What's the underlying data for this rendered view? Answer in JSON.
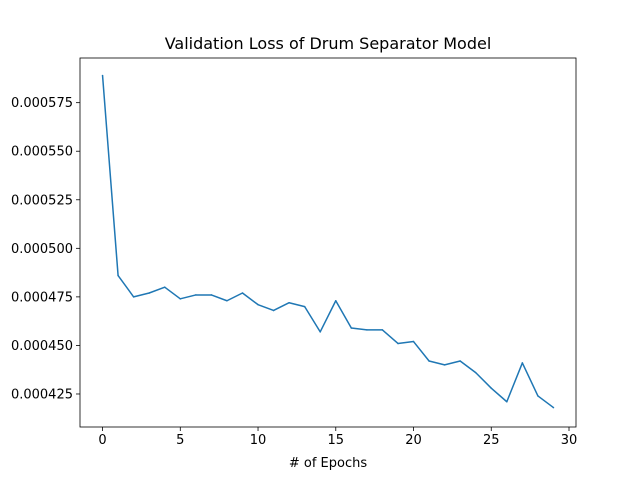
{
  "chart_data": {
    "type": "line",
    "title": "Validation Loss of Drum Separator Model",
    "xlabel": "# of Epochs",
    "ylabel": "",
    "xlim": [
      -1.45,
      30.45
    ],
    "ylim": [
      0.000408,
      0.000598
    ],
    "x_ticks": [
      0,
      5,
      10,
      15,
      20,
      25,
      30
    ],
    "x_tick_labels": [
      "0",
      "5",
      "10",
      "15",
      "20",
      "25",
      "30"
    ],
    "y_ticks": [
      0.000425,
      0.00045,
      0.000475,
      0.0005,
      0.000525,
      0.00055,
      0.000575
    ],
    "y_tick_labels": [
      "0.000425",
      "0.000450",
      "0.000475",
      "0.000500",
      "0.000525",
      "0.000550",
      "0.000575"
    ],
    "grid": false,
    "series": [
      {
        "color": "#1f77b4",
        "x": [
          0,
          1,
          2,
          3,
          4,
          5,
          6,
          7,
          8,
          9,
          10,
          11,
          12,
          13,
          14,
          15,
          16,
          17,
          18,
          19,
          20,
          21,
          22,
          23,
          24,
          25,
          26,
          27,
          28,
          29
        ],
        "y": [
          0.000589,
          0.000486,
          0.000475,
          0.000477,
          0.00048,
          0.000474,
          0.000476,
          0.000476,
          0.000473,
          0.000477,
          0.000471,
          0.000468,
          0.000472,
          0.00047,
          0.000457,
          0.000473,
          0.000459,
          0.000458,
          0.000458,
          0.000451,
          0.000452,
          0.000442,
          0.00044,
          0.000442,
          0.000436,
          0.000428,
          0.000421,
          0.000441,
          0.000424,
          0.000418
        ]
      }
    ]
  }
}
